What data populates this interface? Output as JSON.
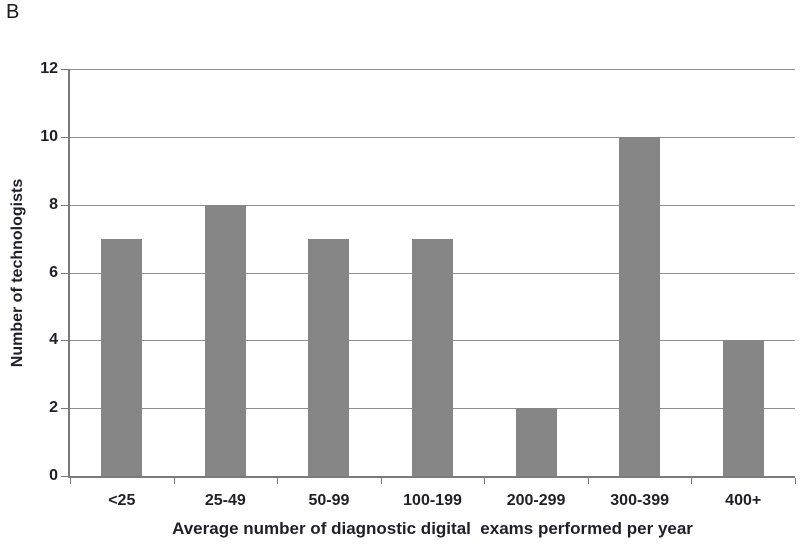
{
  "panel_label": "B",
  "colors": {
    "bar": "#868686",
    "gridline": "#8f8f8f",
    "axis": "#7a7a7a",
    "text": "#1f1f28",
    "background": "#ffffff"
  },
  "chart_data": {
    "type": "bar",
    "categories": [
      "<25",
      "25-49",
      "50-99",
      "100-199",
      "200-299",
      "300-399",
      "400+"
    ],
    "values": [
      7,
      8,
      7,
      7,
      2,
      10,
      4
    ],
    "title": "",
    "xlabel": "Average number of diagnostic digital  exams performed per year",
    "ylabel": "Number of technologists",
    "ylim": [
      0,
      12
    ],
    "yticks": [
      0,
      2,
      4,
      6,
      8,
      10,
      12
    ],
    "grid": true,
    "legend": "none",
    "bar_count": 7
  }
}
